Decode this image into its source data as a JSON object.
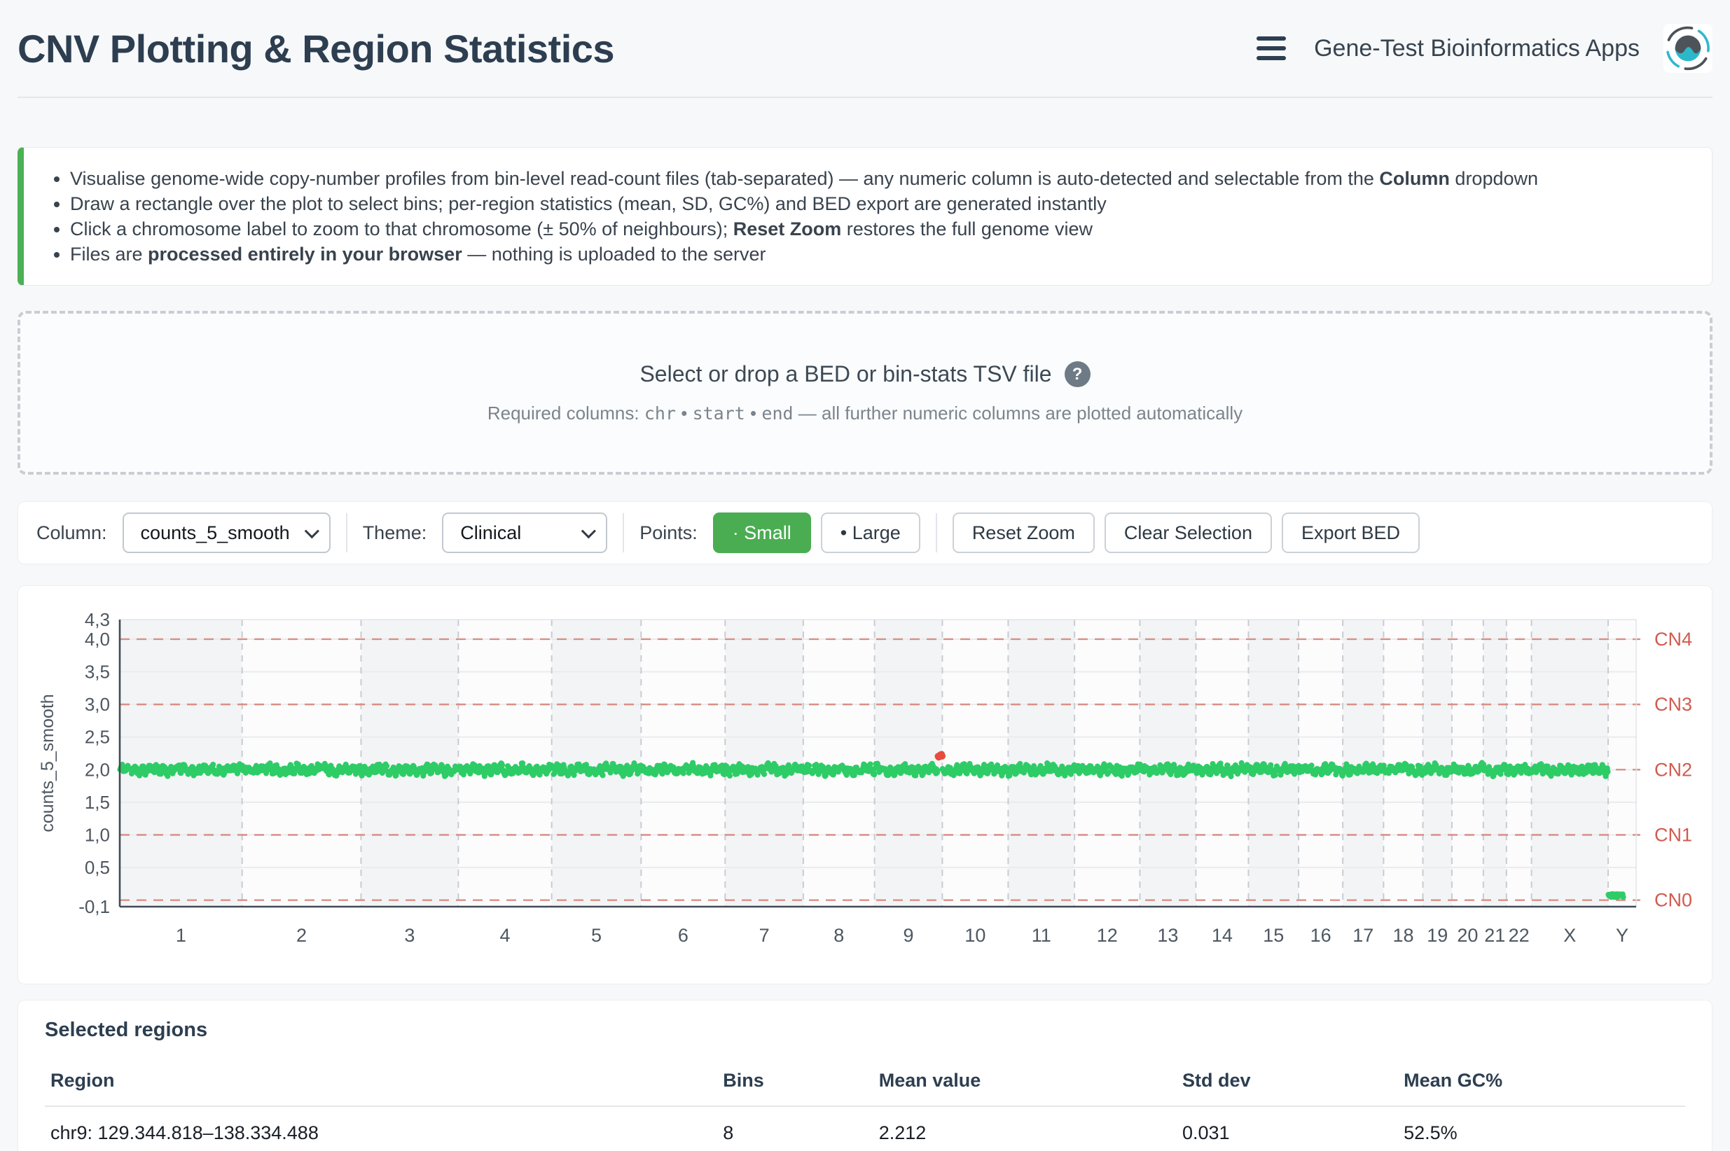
{
  "header": {
    "title": "CNV Plotting & Region Statistics",
    "app_name": "Gene-Test Bioinformatics Apps"
  },
  "info_box": {
    "bullets": [
      {
        "runs": [
          {
            "t": "Visualise genome-wide copy-number profiles from bin-level read-count files (tab-separated) — any numeric column is auto-detected and selectable from the "
          },
          {
            "t": "Column",
            "b": true
          },
          {
            "t": " dropdown"
          }
        ]
      },
      {
        "runs": [
          {
            "t": "Draw a rectangle over the plot to select bins; per-region statistics (mean, SD, GC%) and BED export are generated instantly"
          }
        ]
      },
      {
        "runs": [
          {
            "t": "Click a chromosome label to zoom to that chromosome (± 50% of neighbours); "
          },
          {
            "t": "Reset Zoom",
            "b": true
          },
          {
            "t": " restores the full genome view"
          }
        ]
      },
      {
        "runs": [
          {
            "t": "Files are "
          },
          {
            "t": "processed entirely in your browser",
            "b": true
          },
          {
            "t": " — nothing is uploaded to the server"
          }
        ]
      }
    ]
  },
  "dropzone": {
    "title": "Select or drop a BED or bin-stats TSV file",
    "help_glyph": "?",
    "subtitle_runs": [
      {
        "t": "Required columns: "
      },
      {
        "t": "chr",
        "code": true
      },
      {
        "t": " • "
      },
      {
        "t": "start",
        "code": true
      },
      {
        "t": " • "
      },
      {
        "t": "end",
        "code": true
      },
      {
        "t": " — all further numeric columns are plotted automatically"
      }
    ]
  },
  "toolbar": {
    "column_label": "Column:",
    "column_value": "counts_5_smooth",
    "theme_label": "Theme:",
    "theme_value": "Clinical",
    "points_label": "Points:",
    "points_options": [
      {
        "label": "· Small",
        "active": true
      },
      {
        "label": "• Large",
        "active": false
      }
    ],
    "buttons": [
      "Reset Zoom",
      "Clear Selection",
      "Export BED"
    ]
  },
  "chart_data": {
    "type": "scatter",
    "ylabel": "counts_5_smooth",
    "ylim": [
      -0.1,
      4.3
    ],
    "yticks": [
      {
        "label": "4,3",
        "v": 4.3
      },
      {
        "label": "4,0",
        "v": 4.0
      },
      {
        "label": "3,5",
        "v": 3.5
      },
      {
        "label": "3,0",
        "v": 3.0
      },
      {
        "label": "2,5",
        "v": 2.5
      },
      {
        "label": "2,0",
        "v": 2.0
      },
      {
        "label": "1,5",
        "v": 1.5
      },
      {
        "label": "1,0",
        "v": 1.0
      },
      {
        "label": "0,5",
        "v": 0.5
      },
      {
        "label": "-0,1",
        "v": -0.1
      }
    ],
    "cn_lines": [
      {
        "label": "CN4",
        "v": 4
      },
      {
        "label": "CN3",
        "v": 3
      },
      {
        "label": "CN2",
        "v": 2
      },
      {
        "label": "CN1",
        "v": 1
      },
      {
        "label": "CN0",
        "v": 0
      }
    ],
    "chromosomes": [
      {
        "name": "1",
        "size_mb": 249
      },
      {
        "name": "2",
        "size_mb": 242
      },
      {
        "name": "3",
        "size_mb": 198
      },
      {
        "name": "4",
        "size_mb": 190
      },
      {
        "name": "5",
        "size_mb": 182
      },
      {
        "name": "6",
        "size_mb": 171
      },
      {
        "name": "7",
        "size_mb": 159
      },
      {
        "name": "8",
        "size_mb": 145
      },
      {
        "name": "9",
        "size_mb": 138
      },
      {
        "name": "10",
        "size_mb": 134
      },
      {
        "name": "11",
        "size_mb": 135
      },
      {
        "name": "12",
        "size_mb": 133
      },
      {
        "name": "13",
        "size_mb": 114
      },
      {
        "name": "14",
        "size_mb": 107
      },
      {
        "name": "15",
        "size_mb": 102
      },
      {
        "name": "16",
        "size_mb": 90
      },
      {
        "name": "17",
        "size_mb": 83
      },
      {
        "name": "18",
        "size_mb": 80
      },
      {
        "name": "19",
        "size_mb": 59
      },
      {
        "name": "20",
        "size_mb": 64
      },
      {
        "name": "21",
        "size_mb": 47
      },
      {
        "name": "22",
        "size_mb": 51
      },
      {
        "name": "X",
        "size_mb": 156
      },
      {
        "name": "Y",
        "size_mb": 57
      }
    ],
    "baseline_value": 2.0,
    "bin_size_mb": 1.125,
    "y_chrom": {
      "value": 0.07,
      "fraction": 0.55
    },
    "selection": {
      "chrom": "9",
      "start_mb": 129.3,
      "end_mb": 138.34,
      "value": 2.212,
      "bins": 8
    },
    "point_colors": {
      "normal": "#2ecc66",
      "selected": "#e74c3c"
    },
    "band_colors": [
      "#f3f4f6",
      "#fcfcfd"
    ],
    "grid": true,
    "legend": "none"
  },
  "regions": {
    "heading": "Selected regions",
    "columns": [
      "Region",
      "Bins",
      "Mean value",
      "Std dev",
      "Mean GC%"
    ],
    "rows": [
      [
        "chr9: 129.344.818–138.334.488",
        "8",
        "2.212",
        "0.031",
        "52.5%"
      ]
    ]
  },
  "colors": {
    "accent_green": "#4aad52",
    "title": "#2d3e50",
    "cn_line": "#d98f86",
    "cn_label": "#d15b50",
    "axis_text": "#4d5760"
  }
}
